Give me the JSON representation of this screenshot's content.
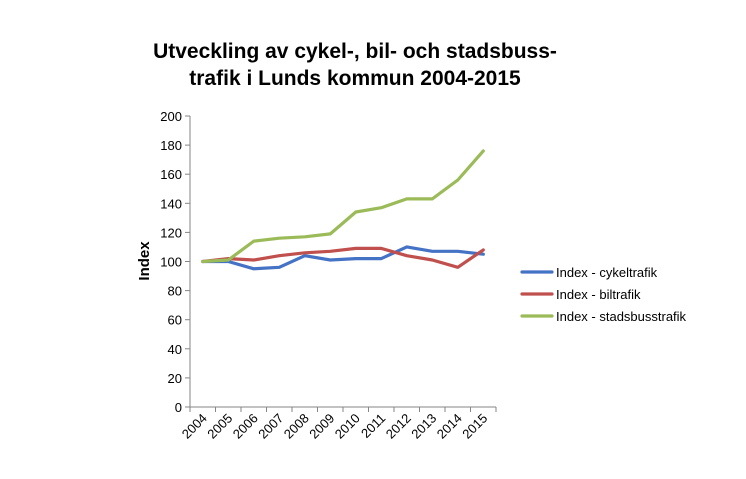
{
  "chart_data": {
    "type": "line",
    "title_lines": [
      "Utveckling av cykel-, bil- och stadsbuss-",
      "trafik i Lunds kommun 2004-2015"
    ],
    "ylabel": "Index",
    "xlabel": "",
    "ylim": [
      0,
      200
    ],
    "y_ticks": [
      "0",
      "20",
      "40",
      "60",
      "80",
      "100",
      "120",
      "140",
      "160",
      "180",
      "200"
    ],
    "y_tick_values": [
      0,
      20,
      40,
      60,
      80,
      100,
      120,
      140,
      160,
      180,
      200
    ],
    "categories": [
      "2004",
      "2005",
      "2006",
      "2007",
      "2008",
      "2009",
      "2010",
      "2011",
      "2012",
      "2013",
      "2014",
      "2015"
    ],
    "grid": false,
    "legend_position": "right",
    "series": [
      {
        "name": "Index - cykeltrafik",
        "color": "#4472C4",
        "values": [
          100,
          100,
          95,
          96,
          104,
          101,
          102,
          102,
          110,
          107,
          107,
          105
        ]
      },
      {
        "name": "Index - biltrafik",
        "color": "#C0504D",
        "values": [
          100,
          102,
          101,
          104,
          106,
          107,
          109,
          109,
          104,
          101,
          96,
          108
        ]
      },
      {
        "name": "Index - stadsbusstrafik",
        "color": "#9BBB59",
        "values": [
          100,
          101,
          114,
          116,
          117,
          119,
          134,
          137,
          143,
          143,
          156,
          176
        ]
      }
    ]
  }
}
